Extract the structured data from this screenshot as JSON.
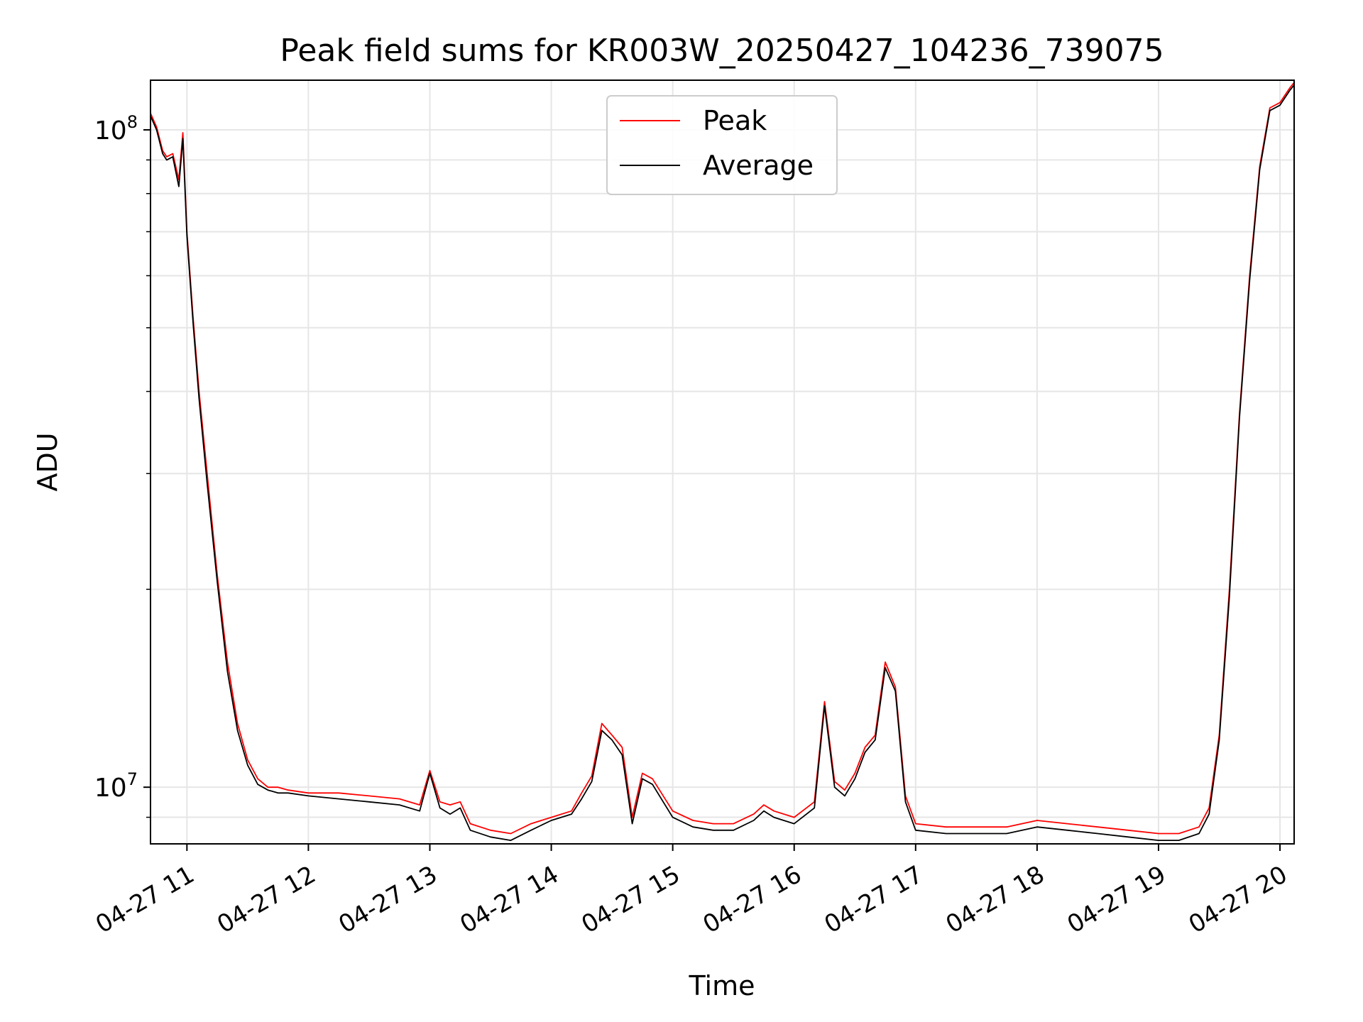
{
  "chart_data": {
    "type": "line",
    "title": "Peak field sums for KR003W_20250427_104236_739075",
    "xlabel": "Time",
    "ylabel": "ADU",
    "yscale": "log",
    "ylim": [
      8200000,
      119000000
    ],
    "xlim": [
      "04-27 10:42",
      "04-27 20:07"
    ],
    "grid": true,
    "legend": {
      "placement": "upper center"
    },
    "x_ticks": [
      "04-27 11",
      "04-27 12",
      "04-27 13",
      "04-27 14",
      "04-27 15",
      "04-27 16",
      "04-27 17",
      "04-27 18",
      "04-27 19",
      "04-27 20"
    ],
    "y_ticks": [
      {
        "value": 10000000,
        "base": "10",
        "exp": "7"
      },
      {
        "value": 100000000,
        "base": "10",
        "exp": "8"
      }
    ],
    "x": [
      "04-27 10:42",
      "04-27 10:45",
      "04-27 10:48",
      "04-27 10:50",
      "04-27 10:53",
      "04-27 10:56",
      "04-27 10:58",
      "04-27 11:00",
      "04-27 11:03",
      "04-27 11:06",
      "04-27 11:10",
      "04-27 11:15",
      "04-27 11:20",
      "04-27 11:25",
      "04-27 11:30",
      "04-27 11:35",
      "04-27 11:40",
      "04-27 11:45",
      "04-27 11:50",
      "04-27 12:00",
      "04-27 12:15",
      "04-27 12:30",
      "04-27 12:45",
      "04-27 12:55",
      "04-27 13:00",
      "04-27 13:05",
      "04-27 13:10",
      "04-27 13:15",
      "04-27 13:20",
      "04-27 13:30",
      "04-27 13:40",
      "04-27 13:50",
      "04-27 14:00",
      "04-27 14:10",
      "04-27 14:15",
      "04-27 14:20",
      "04-27 14:25",
      "04-27 14:30",
      "04-27 14:35",
      "04-27 14:40",
      "04-27 14:45",
      "04-27 14:50",
      "04-27 15:00",
      "04-27 15:10",
      "04-27 15:20",
      "04-27 15:30",
      "04-27 15:40",
      "04-27 15:45",
      "04-27 15:50",
      "04-27 16:00",
      "04-27 16:10",
      "04-27 16:15",
      "04-27 16:20",
      "04-27 16:25",
      "04-27 16:30",
      "04-27 16:35",
      "04-27 16:40",
      "04-27 16:45",
      "04-27 16:50",
      "04-27 16:55",
      "04-27 17:00",
      "04-27 17:15",
      "04-27 17:30",
      "04-27 17:45",
      "04-27 18:00",
      "04-27 18:15",
      "04-27 18:30",
      "04-27 18:45",
      "04-27 19:00",
      "04-27 19:10",
      "04-27 19:20",
      "04-27 19:25",
      "04-27 19:30",
      "04-27 19:35",
      "04-27 19:40",
      "04-27 19:45",
      "04-27 19:50",
      "04-27 19:55",
      "04-27 20:00",
      "04-27 20:05",
      "04-27 20:07"
    ],
    "series": [
      {
        "name": "Peak",
        "color": "#ff0000",
        "values": [
          106000000,
          101000000,
          93000000,
          91000000,
          92000000,
          84000000,
          99000000,
          70000000,
          52000000,
          40000000,
          30000000,
          21000000,
          15500000,
          12500000,
          11000000,
          10300000,
          10000000,
          10000000,
          9900000,
          9800000,
          9800000,
          9700000,
          9600000,
          9400000,
          10600000,
          9500000,
          9400000,
          9500000,
          8800000,
          8600000,
          8500000,
          8800000,
          9000000,
          9200000,
          9800000,
          10400000,
          12500000,
          12000000,
          11500000,
          9000000,
          10500000,
          10300000,
          9200000,
          8900000,
          8800000,
          8800000,
          9100000,
          9400000,
          9200000,
          9000000,
          9500000,
          13500000,
          10200000,
          9900000,
          10500000,
          11500000,
          12000000,
          15500000,
          14200000,
          9700000,
          8800000,
          8700000,
          8700000,
          8700000,
          8900000,
          8800000,
          8700000,
          8600000,
          8500000,
          8500000,
          8700000,
          9300000,
          12000000,
          20000000,
          37000000,
          60000000,
          88000000,
          108000000,
          110000000,
          116000000,
          118000000
        ]
      },
      {
        "name": "Average",
        "color": "#000000",
        "values": [
          105000000,
          100000000,
          92000000,
          90000000,
          91000000,
          82000000,
          97000000,
          69000000,
          51000000,
          39000000,
          29000000,
          20500000,
          15000000,
          12200000,
          10800000,
          10100000,
          9900000,
          9800000,
          9800000,
          9700000,
          9600000,
          9500000,
          9400000,
          9200000,
          10500000,
          9300000,
          9100000,
          9300000,
          8600000,
          8400000,
          8300000,
          8600000,
          8900000,
          9100000,
          9600000,
          10200000,
          12200000,
          11800000,
          11200000,
          8800000,
          10300000,
          10100000,
          9000000,
          8700000,
          8600000,
          8600000,
          8900000,
          9200000,
          9000000,
          8800000,
          9300000,
          13300000,
          10000000,
          9700000,
          10300000,
          11300000,
          11800000,
          15200000,
          14000000,
          9500000,
          8600000,
          8500000,
          8500000,
          8500000,
          8700000,
          8600000,
          8500000,
          8400000,
          8300000,
          8300000,
          8500000,
          9100000,
          11800000,
          19500000,
          36500000,
          59000000,
          87000000,
          107000000,
          109000000,
          115000000,
          117000000
        ]
      }
    ]
  }
}
